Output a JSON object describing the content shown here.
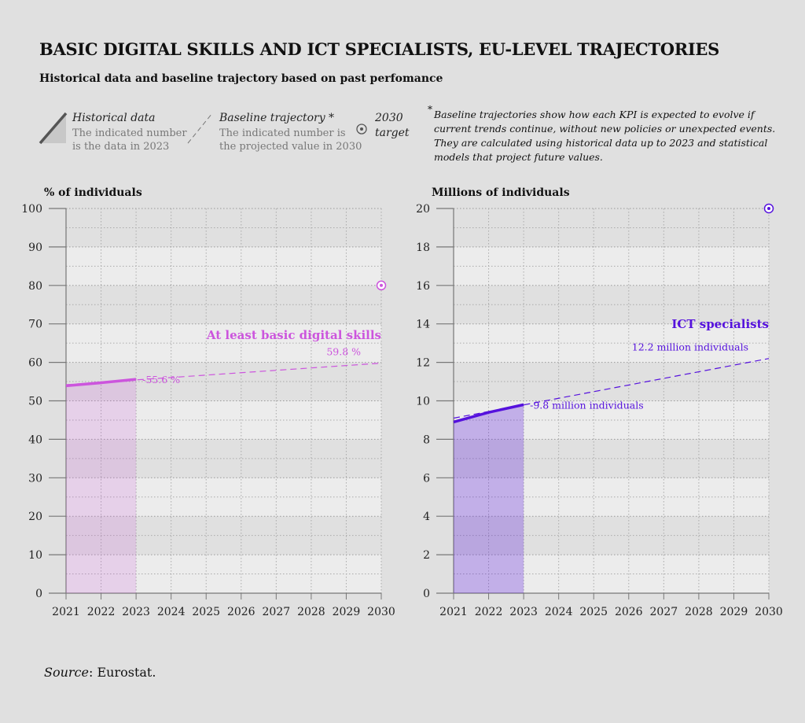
{
  "title": "BASIC DIGITAL SKILLS AND ICT SPECIALISTS, EU-LEVEL TRAJECTORIES",
  "subtitle": "Historical data and baseline trajectory based on past perfomance",
  "legend": {
    "historical": {
      "title": "Historical data",
      "line1": "The indicated number",
      "line2": "is the data in 2023"
    },
    "baseline": {
      "title": "Baseline trajectory *",
      "line1": "The indicated number is",
      "line2": "the projected value in 2030"
    },
    "target": {
      "line1": "2030",
      "line2": "target"
    },
    "note_mark": "*",
    "note": "Baseline trajectories show how each KPI is expected to evolve if current trends continue, without new policies or unexpected events. They are calculated using historical data up to 2023 and statistical models that project future values."
  },
  "source_label": "Source",
  "source_text": ": Eurostat.",
  "chart_data": [
    {
      "type": "line",
      "ylabel": "% of individuals",
      "series_name": "At least basic digital skills",
      "color": "#cc55dd",
      "x": [
        2021,
        2022,
        2023,
        2024,
        2025,
        2026,
        2027,
        2028,
        2029,
        2030
      ],
      "ylim": [
        0,
        100
      ],
      "yticks": [
        0,
        10,
        20,
        30,
        40,
        50,
        60,
        70,
        80,
        90,
        100
      ],
      "historical": {
        "x": [
          2021,
          2022,
          2023
        ],
        "y": [
          53.9,
          54.7,
          55.6
        ]
      },
      "baseline": {
        "x": [
          2021,
          2030
        ],
        "y": [
          54.2,
          59.8
        ]
      },
      "target": {
        "x": 2030,
        "y": 80
      },
      "label_2023": "55.6 %",
      "label_2030": "59.8 %"
    },
    {
      "type": "line",
      "ylabel": "Millions of individuals",
      "series_name": "ICT specialists",
      "color": "#5511dd",
      "x": [
        2021,
        2022,
        2023,
        2024,
        2025,
        2026,
        2027,
        2028,
        2029,
        2030
      ],
      "ylim": [
        0,
        20
      ],
      "yticks": [
        0,
        2,
        4,
        6,
        8,
        10,
        12,
        14,
        16,
        18,
        20
      ],
      "historical": {
        "x": [
          2021,
          2022,
          2023
        ],
        "y": [
          8.9,
          9.4,
          9.8
        ]
      },
      "baseline": {
        "x": [
          2021,
          2030
        ],
        "y": [
          9.1,
          12.2
        ]
      },
      "target": {
        "x": 2030,
        "y": 20
      },
      "label_2023": "9.8 million individuals",
      "label_2030": "12.2 million individuals"
    }
  ]
}
